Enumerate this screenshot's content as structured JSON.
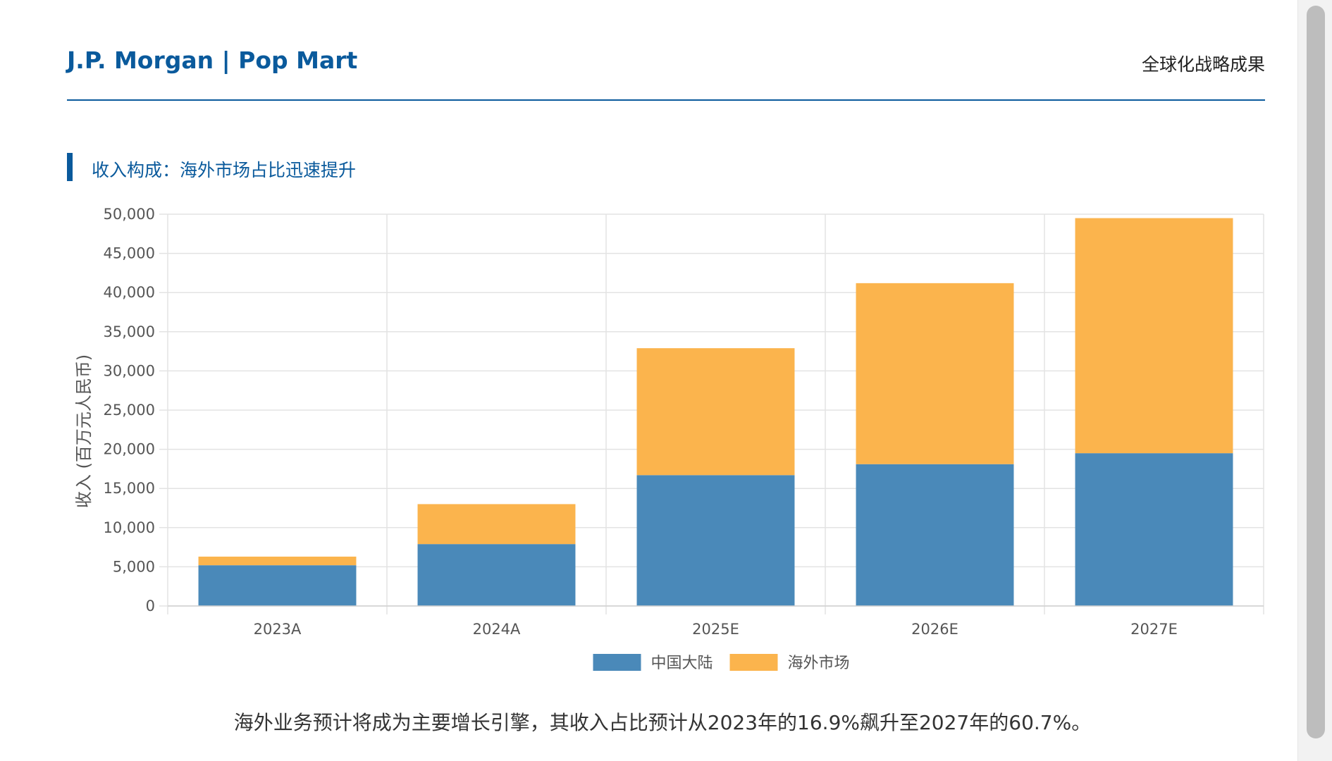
{
  "header": {
    "title": "J.P. Morgan | Pop Mart",
    "right_label": "全球化战略成果"
  },
  "section": {
    "title": "收入构成：海外市场占比迅速提升"
  },
  "caption": "海外业务预计将成为主要增长引擎，其收入占比预计从2023年的16.9%飙升至2027年的60.7%。",
  "colors": {
    "brand": "#0a5a9c",
    "mainland": "#4a89b9",
    "overseas": "#fbb44d"
  },
  "chart_data": {
    "type": "bar",
    "stacked": true,
    "title": "",
    "xlabel": "",
    "ylabel": "收入 (百万元人民币)",
    "categories": [
      "2023A",
      "2024A",
      "2025E",
      "2026E",
      "2027E"
    ],
    "series": [
      {
        "name": "中国大陆",
        "values": [
          5200,
          7900,
          16700,
          18100,
          19500
        ]
      },
      {
        "name": "海外市场",
        "values": [
          1100,
          5100,
          16200,
          23100,
          30000
        ]
      }
    ],
    "ylim": [
      0,
      50000
    ],
    "yticks": [
      0,
      5000,
      10000,
      15000,
      20000,
      25000,
      30000,
      35000,
      40000,
      45000,
      50000
    ],
    "ytick_labels": [
      "0",
      "5,000",
      "10,000",
      "15,000",
      "20,000",
      "25,000",
      "30,000",
      "35,000",
      "40,000",
      "45,000",
      "50,000"
    ],
    "grid": true,
    "legend_position": "bottom"
  }
}
